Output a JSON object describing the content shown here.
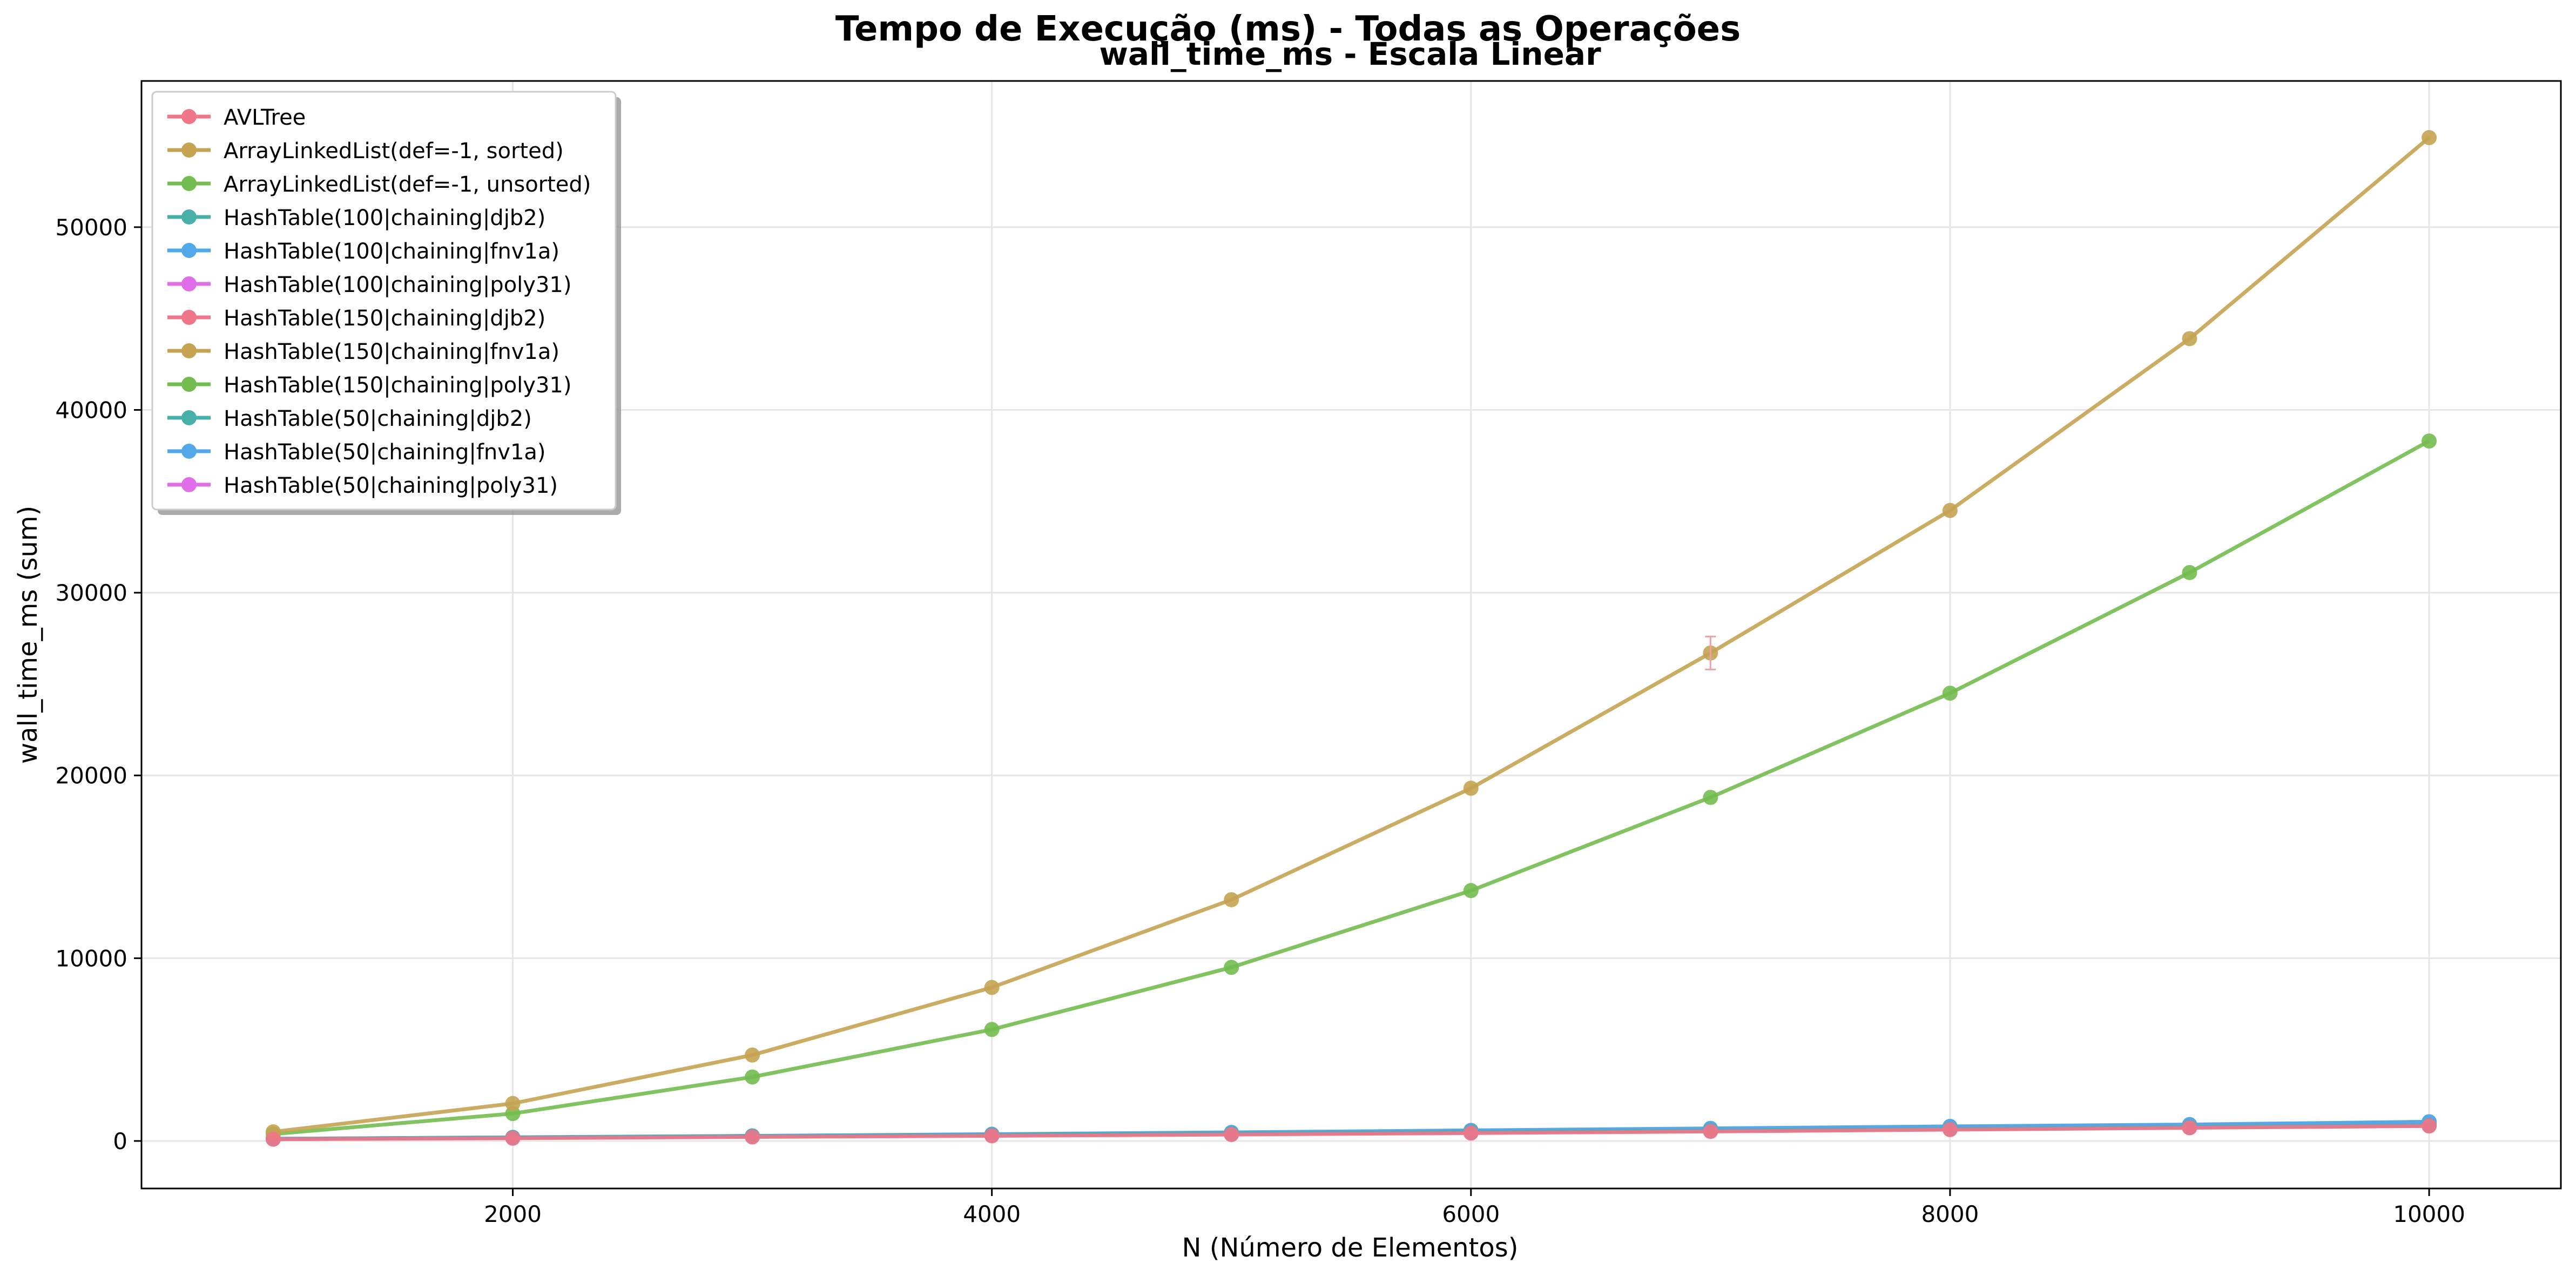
{
  "chart_data": {
    "type": "line",
    "suptitle": "Tempo de Execução (ms) - Todas as Operações",
    "title": "wall_time_ms - Escala Linear",
    "xlabel": "N (Número de Elementos)",
    "ylabel": "wall_time_ms (sum)",
    "xlim": [
      450,
      10550
    ],
    "ylim": [
      -2600,
      58000
    ],
    "xticks": [
      2000,
      4000,
      6000,
      8000,
      10000
    ],
    "yticks": [
      0,
      10000,
      20000,
      30000,
      40000,
      50000
    ],
    "grid": true,
    "legend_position": "top-left",
    "x": [
      1000,
      2000,
      3000,
      4000,
      5000,
      6000,
      7000,
      8000,
      9000,
      10000
    ],
    "series": [
      {
        "name": "AVLTree",
        "color": "#f0768a",
        "values": [
          100,
          150,
          220,
          280,
          350,
          430,
          520,
          620,
          720,
          820
        ]
      },
      {
        "name": "ArrayLinkedList(def=-1, sorted)",
        "color": "#c5a352",
        "values": [
          500,
          2050,
          4700,
          8400,
          13200,
          19300,
          26700,
          34500,
          43900,
          54900
        ]
      },
      {
        "name": "ArrayLinkedList(def=-1, unsorted)",
        "color": "#73bc4f",
        "values": [
          380,
          1500,
          3500,
          6100,
          9500,
          13700,
          18800,
          24500,
          31100,
          38300
        ]
      },
      {
        "name": "HashTable(100|chaining|djb2)",
        "color": "#48b0a8",
        "values": [
          110,
          180,
          250,
          320,
          400,
          480,
          560,
          650,
          750,
          850
        ]
      },
      {
        "name": "HashTable(100|chaining|fnv1a)",
        "color": "#52a8e8",
        "values": [
          120,
          190,
          270,
          350,
          440,
          560,
          660,
          780,
          880,
          1050
        ]
      },
      {
        "name": "HashTable(100|chaining|poly31)",
        "color": "#e06ee8",
        "values": [
          110,
          180,
          260,
          340,
          420,
          520,
          620,
          720,
          820,
          930
        ]
      },
      {
        "name": "HashTable(150|chaining|djb2)",
        "color": "#f0768a",
        "values": [
          100,
          170,
          240,
          310,
          380,
          460,
          550,
          640,
          730,
          830
        ]
      },
      {
        "name": "HashTable(150|chaining|fnv1a)",
        "color": "#c5a352",
        "values": [
          110,
          180,
          250,
          330,
          410,
          500,
          590,
          690,
          790,
          890
        ]
      },
      {
        "name": "HashTable(150|chaining|poly31)",
        "color": "#73bc4f",
        "values": [
          110,
          180,
          250,
          330,
          410,
          490,
          580,
          680,
          780,
          880
        ]
      },
      {
        "name": "HashTable(50|chaining|djb2)",
        "color": "#48b0a8",
        "values": [
          110,
          190,
          270,
          350,
          440,
          540,
          640,
          750,
          850,
          960
        ]
      },
      {
        "name": "HashTable(50|chaining|fnv1a)",
        "color": "#52a8e8",
        "values": [
          120,
          200,
          280,
          370,
          470,
          580,
          690,
          800,
          900,
          1050
        ]
      },
      {
        "name": "HashTable(50|chaining|poly31)",
        "color": "#e06ee8",
        "values": [
          115,
          190,
          270,
          360,
          450,
          550,
          650,
          760,
          860,
          960
        ]
      }
    ],
    "error_bar": {
      "x": 7000,
      "low": 25800,
      "high": 27600,
      "color": "#f0a0aa"
    }
  }
}
